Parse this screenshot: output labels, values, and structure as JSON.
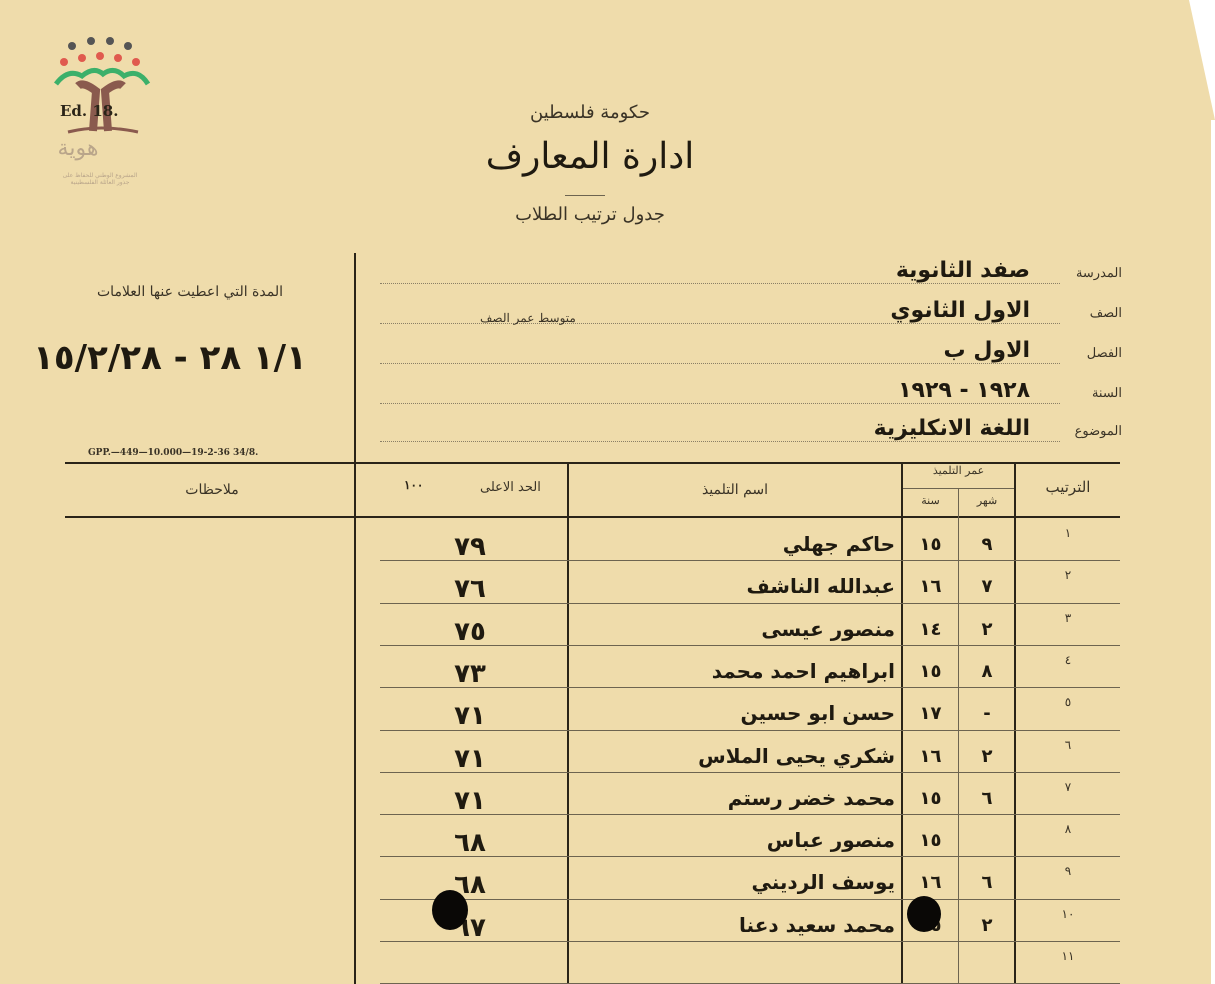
{
  "logo": {
    "stamp_text": "Ed. 18.",
    "brand": "هوية",
    "tagline_1": "المشروع الوطني للحفاظ على",
    "tagline_2": "جذور العائلة الفلسطينية"
  },
  "header": {
    "government": "حكومة فلسطين",
    "department": "ادارة المعارف",
    "form_title": "جدول ترتيب الطلاب"
  },
  "period": {
    "label": "المدة التي اعطيت عنها العلامات",
    "value": "١/١ ٢٨ - ١٥/٢/٢٨"
  },
  "print_code": "GPP.—449—10.000—19-2-36 34/8.",
  "fields": [
    {
      "label": "المدرسة",
      "value": "صفد الثانوية"
    },
    {
      "label": "الصف",
      "value": "الاول الثانوي"
    },
    {
      "label": "الفصل",
      "value": "الاول ب"
    },
    {
      "label": "السنة",
      "value": "١٩٢٨ - ١٩٢٩"
    },
    {
      "label": "الموضوع",
      "value": "اللغة الانكليزية"
    }
  ],
  "average_age_label": "متوسط عمر الصف",
  "table": {
    "headers": {
      "rank": "الترتيب",
      "age": "عمر التلميذ",
      "month": "شهر",
      "year": "سنة",
      "name": "اسم التلميذ",
      "max": "الحد الاعلى",
      "max_value": "١٠٠",
      "notes": "ملاحظات"
    },
    "rows": [
      {
        "rank": "١",
        "month": "٩",
        "year": "١٥",
        "name": "حاكم جهلي",
        "mark": "٧٩"
      },
      {
        "rank": "٢",
        "month": "٧",
        "year": "١٦",
        "name": "عبدالله الناشف",
        "mark": "٧٦"
      },
      {
        "rank": "٣",
        "month": "٢",
        "year": "١٤",
        "name": "منصور عيسى",
        "mark": "٧٥"
      },
      {
        "rank": "٤",
        "month": "٨",
        "year": "١٥",
        "name": "ابراهيم احمد محمد",
        "mark": "٧٣"
      },
      {
        "rank": "٥",
        "month": "-",
        "year": "١٧",
        "name": "حسن ابو حسين",
        "mark": "٧١"
      },
      {
        "rank": "٦",
        "month": "٢",
        "year": "١٦",
        "name": "شكري يحيى الملاس",
        "mark": "٧١"
      },
      {
        "rank": "٧",
        "month": "٦",
        "year": "١٥",
        "name": "محمد خضر رستم",
        "mark": "٧١"
      },
      {
        "rank": "٨",
        "month": "",
        "year": "١٥",
        "name": "منصور عباس",
        "mark": "٦٨"
      },
      {
        "rank": "٩",
        "month": "٦",
        "year": "١٦",
        "name": "يوسف الرديني",
        "mark": "٦٨"
      },
      {
        "rank": "١٠",
        "month": "٢",
        "year": "١٥",
        "name": "محمد سعيد دعنا",
        "mark": "٦٧"
      },
      {
        "rank": "١١",
        "month": "",
        "year": "",
        "name": "",
        "mark": ""
      }
    ]
  },
  "colors": {
    "paper": "#efdcab",
    "ink": "#2a2418"
  }
}
